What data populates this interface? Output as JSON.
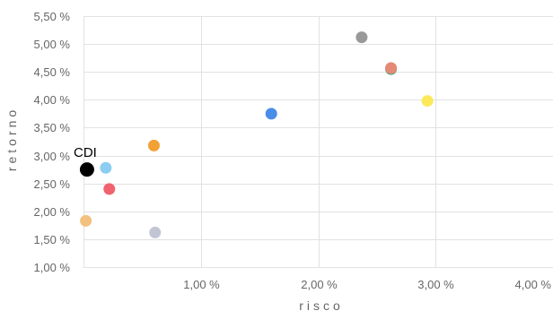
{
  "chart_data": {
    "type": "scatter",
    "xlabel": "risco",
    "ylabel": "retorno",
    "xlim": [
      0.0,
      4.0
    ],
    "ylim": [
      1.0,
      5.5
    ],
    "x_ticks": [
      {
        "value": 1.0,
        "label": "1,00 %"
      },
      {
        "value": 2.0,
        "label": "2,00 %"
      },
      {
        "value": 3.0,
        "label": "3,00 %"
      },
      {
        "value": 4.0,
        "label": "4,00 %"
      }
    ],
    "y_ticks": [
      {
        "value": 1.0,
        "label": "1,00 %"
      },
      {
        "value": 1.5,
        "label": "1,50 %"
      },
      {
        "value": 2.0,
        "label": "2,00 %"
      },
      {
        "value": 2.5,
        "label": "2,50 %"
      },
      {
        "value": 3.0,
        "label": "3,00 %"
      },
      {
        "value": 3.5,
        "label": "3,50 %"
      },
      {
        "value": 4.0,
        "label": "4,00 %"
      },
      {
        "value": 4.5,
        "label": "4,50 %"
      },
      {
        "value": 5.0,
        "label": "5,00 %"
      },
      {
        "value": 5.5,
        "label": "5,50 %"
      }
    ],
    "grid": true,
    "points": [
      {
        "label": "CDI",
        "x": 0.03,
        "y": 2.75,
        "color": "#000000",
        "emphasis": true
      },
      {
        "label": "",
        "x": 0.19,
        "y": 2.78,
        "color": "#8ecdf2"
      },
      {
        "label": "",
        "x": 0.22,
        "y": 2.4,
        "color": "#f0636e"
      },
      {
        "label": "",
        "x": 0.02,
        "y": 1.83,
        "color": "#f2c17f"
      },
      {
        "label": "",
        "x": 0.6,
        "y": 3.18,
        "color": "#f2a134"
      },
      {
        "label": "",
        "x": 0.61,
        "y": 1.62,
        "color": "#c2c5d3"
      },
      {
        "label": "",
        "x": 1.6,
        "y": 3.75,
        "color": "#4a8de8"
      },
      {
        "label": "",
        "x": 2.37,
        "y": 5.12,
        "color": "#999999"
      },
      {
        "label": "",
        "x": 2.62,
        "y": 4.55,
        "color": "#5fa57a"
      },
      {
        "label": "",
        "x": 2.62,
        "y": 4.57,
        "color": "#e58a76"
      },
      {
        "label": "",
        "x": 2.93,
        "y": 3.98,
        "color": "#fbe95a"
      }
    ]
  }
}
